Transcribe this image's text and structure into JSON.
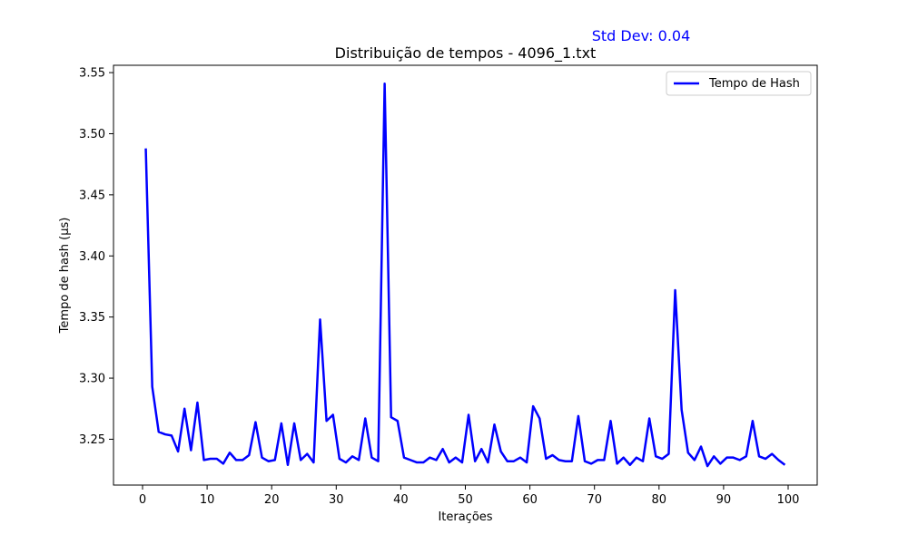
{
  "chart_data": {
    "type": "line",
    "title": "Distribuição de tempos - 4096_1.txt",
    "xlabel": "Iterações",
    "ylabel": "Tempo de hash (µs)",
    "annotation": "Std Dev: 0.04",
    "annotation_color": "#0000ff",
    "xlim": [
      -4.5,
      104.5
    ],
    "ylim": [
      3.2125,
      3.556
    ],
    "x_ticks": [
      0,
      10,
      20,
      30,
      40,
      50,
      60,
      70,
      80,
      90,
      100
    ],
    "y_ticks": [
      3.25,
      3.3,
      3.35,
      3.4,
      3.45,
      3.5,
      3.55
    ],
    "y_tick_labels": [
      "3.25",
      "3.30",
      "3.35",
      "3.40",
      "3.45",
      "3.50",
      "3.55"
    ],
    "grid": false,
    "legend_position": "top-right",
    "series": [
      {
        "name": "Tempo de Hash",
        "color": "#0000ff",
        "x": [
          0.5,
          1.5,
          2.5,
          3.5,
          4.5,
          5.5,
          6.5,
          7.5,
          8.5,
          9.5,
          10.5,
          11.5,
          12.5,
          13.5,
          14.5,
          15.5,
          16.5,
          17.5,
          18.5,
          19.5,
          20.5,
          21.5,
          22.5,
          23.5,
          24.5,
          25.5,
          26.5,
          27.5,
          28.5,
          29.5,
          30.5,
          31.5,
          32.5,
          33.5,
          34.5,
          35.5,
          36.5,
          37.5,
          38.5,
          39.5,
          40.5,
          41.5,
          42.5,
          43.5,
          44.5,
          45.5,
          46.5,
          47.5,
          48.5,
          49.5,
          50.5,
          51.5,
          52.5,
          53.5,
          54.5,
          55.5,
          56.5,
          57.5,
          58.5,
          59.5,
          60.5,
          61.5,
          62.5,
          63.5,
          64.5,
          65.5,
          66.5,
          67.5,
          68.5,
          69.5,
          70.5,
          71.5,
          72.5,
          73.5,
          74.5,
          75.5,
          76.5,
          77.5,
          78.5,
          79.5,
          80.5,
          81.5,
          82.5,
          83.5,
          84.5,
          85.5,
          86.5,
          87.5,
          88.5,
          89.5,
          90.5,
          91.5,
          92.5,
          93.5,
          94.5,
          95.5,
          96.5,
          97.5,
          98.5,
          99.5
        ],
        "values": [
          3.488,
          3.293,
          3.256,
          3.254,
          3.253,
          3.24,
          3.275,
          3.241,
          3.28,
          3.233,
          3.234,
          3.234,
          3.23,
          3.239,
          3.233,
          3.233,
          3.237,
          3.264,
          3.235,
          3.232,
          3.233,
          3.263,
          3.229,
          3.263,
          3.233,
          3.238,
          3.231,
          3.348,
          3.265,
          3.27,
          3.234,
          3.231,
          3.236,
          3.233,
          3.267,
          3.235,
          3.232,
          3.541,
          3.268,
          3.265,
          3.235,
          3.233,
          3.231,
          3.231,
          3.235,
          3.233,
          3.242,
          3.231,
          3.235,
          3.231,
          3.27,
          3.232,
          3.242,
          3.231,
          3.262,
          3.24,
          3.232,
          3.232,
          3.235,
          3.231,
          3.277,
          3.267,
          3.234,
          3.237,
          3.233,
          3.232,
          3.232,
          3.269,
          3.232,
          3.23,
          3.233,
          3.233,
          3.265,
          3.23,
          3.235,
          3.229,
          3.235,
          3.232,
          3.267,
          3.236,
          3.234,
          3.238,
          3.372,
          3.274,
          3.239,
          3.233,
          3.244,
          3.228,
          3.236,
          3.23,
          3.235,
          3.235,
          3.233,
          3.236,
          3.265,
          3.236,
          3.234,
          3.238,
          3.233,
          3.229
        ]
      }
    ]
  }
}
